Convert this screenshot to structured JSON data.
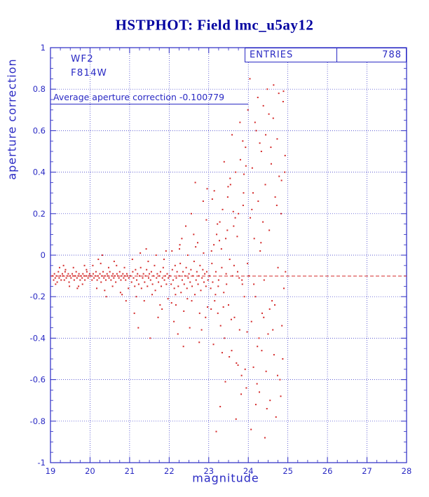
{
  "title": "HSTPHOT: Field lmc_u5ay12",
  "annotations": {
    "detector": "WF2",
    "filter": "F814W",
    "entries_label": "ENTRIES",
    "entries_value": "788",
    "average_text": "Average aperture correction -0.100779"
  },
  "colors": {
    "axis": "#2a2ac4",
    "title": "#0000a0",
    "marker": "#d42a2a",
    "background": "#ffffff"
  },
  "chart_data": {
    "type": "scatter",
    "title": "HSTPHOT: Field lmc_u5ay12",
    "xlabel": "magnitude",
    "ylabel": "aperture correction",
    "xlim": [
      19,
      28
    ],
    "ylim": [
      -1,
      1
    ],
    "x_ticks": [
      19,
      20,
      21,
      22,
      23,
      24,
      25,
      26,
      27,
      28
    ],
    "x_tick_labels": [
      "19",
      "20",
      "21",
      "22",
      "23",
      "24",
      "25",
      "26",
      "27",
      "28"
    ],
    "y_ticks": [
      1,
      0.8,
      0.6,
      0.4,
      0.2,
      0,
      -0.2,
      -0.4,
      -0.6,
      -0.8,
      -1
    ],
    "y_tick_labels": [
      "1",
      "0.8",
      "0.6",
      "0.4",
      "0.2",
      "0",
      "-0.2",
      "-0.4",
      "-0.6",
      "-0.8",
      "-1"
    ],
    "grid": true,
    "legend": "none",
    "entries": 788,
    "average_aperture_correction": -0.100779,
    "reference_line_y": -0.100779,
    "points": [
      [
        19.05,
        -0.1
      ],
      [
        19.08,
        -0.12
      ],
      [
        19.1,
        -0.09
      ],
      [
        19.12,
        -0.11
      ],
      [
        19.15,
        -0.1
      ],
      [
        19.17,
        -0.13
      ],
      [
        19.2,
        -0.08
      ],
      [
        19.22,
        -0.11
      ],
      [
        19.25,
        -0.1
      ],
      [
        19.27,
        -0.12
      ],
      [
        19.3,
        -0.09
      ],
      [
        19.32,
        -0.1
      ],
      [
        19.35,
        -0.12
      ],
      [
        19.37,
        -0.08
      ],
      [
        19.4,
        -0.11
      ],
      [
        19.42,
        -0.1
      ],
      [
        19.45,
        -0.09
      ],
      [
        19.47,
        -0.13
      ],
      [
        19.5,
        -0.1
      ],
      [
        19.52,
        -0.11
      ],
      [
        19.55,
        -0.09
      ],
      [
        19.57,
        -0.1
      ],
      [
        19.6,
        -0.12
      ],
      [
        19.62,
        -0.1
      ],
      [
        19.65,
        -0.08
      ],
      [
        19.67,
        -0.11
      ],
      [
        19.7,
        -0.1
      ],
      [
        19.72,
        -0.09
      ],
      [
        19.75,
        -0.12
      ],
      [
        19.77,
        -0.1
      ],
      [
        19.8,
        -0.11
      ],
      [
        19.82,
        -0.09
      ],
      [
        19.85,
        -0.1
      ],
      [
        19.87,
        -0.12
      ],
      [
        19.9,
        -0.1
      ],
      [
        19.92,
        -0.08
      ],
      [
        19.95,
        -0.11
      ],
      [
        19.97,
        -0.1
      ],
      [
        19.99,
        -0.09
      ],
      [
        19.23,
        -0.06
      ],
      [
        19.48,
        -0.15
      ],
      [
        19.68,
        -0.16
      ],
      [
        19.33,
        -0.05
      ],
      [
        19.81,
        -0.14
      ],
      [
        19.91,
        -0.07
      ],
      [
        19.58,
        -0.06
      ],
      [
        19.13,
        -0.14
      ],
      [
        19.71,
        -0.15
      ],
      [
        19.38,
        -0.07
      ],
      [
        19.86,
        -0.05
      ],
      [
        20.02,
        -0.1
      ],
      [
        20.05,
        -0.12
      ],
      [
        20.08,
        -0.09
      ],
      [
        20.1,
        -0.11
      ],
      [
        20.13,
        -0.1
      ],
      [
        20.15,
        -0.08
      ],
      [
        20.18,
        -0.12
      ],
      [
        20.2,
        -0.1
      ],
      [
        20.23,
        -0.11
      ],
      [
        20.25,
        -0.09
      ],
      [
        20.28,
        -0.13
      ],
      [
        20.3,
        -0.1
      ],
      [
        20.33,
        -0.08
      ],
      [
        20.35,
        -0.11
      ],
      [
        20.38,
        -0.1
      ],
      [
        20.4,
        -0.12
      ],
      [
        20.43,
        -0.09
      ],
      [
        20.45,
        -0.1
      ],
      [
        20.48,
        -0.11
      ],
      [
        20.5,
        -0.08
      ],
      [
        20.53,
        -0.12
      ],
      [
        20.55,
        -0.1
      ],
      [
        20.58,
        -0.09
      ],
      [
        20.6,
        -0.11
      ],
      [
        20.63,
        -0.1
      ],
      [
        20.65,
        -0.13
      ],
      [
        20.68,
        -0.09
      ],
      [
        20.7,
        -0.1
      ],
      [
        20.73,
        -0.11
      ],
      [
        20.75,
        -0.08
      ],
      [
        20.78,
        -0.12
      ],
      [
        20.8,
        -0.1
      ],
      [
        20.83,
        -0.09
      ],
      [
        20.85,
        -0.11
      ],
      [
        20.88,
        -0.1
      ],
      [
        20.9,
        -0.12
      ],
      [
        20.93,
        -0.09
      ],
      [
        20.95,
        -0.1
      ],
      [
        20.98,
        -0.11
      ],
      [
        20.07,
        -0.05
      ],
      [
        20.17,
        -0.16
      ],
      [
        20.27,
        -0.04
      ],
      [
        20.37,
        -0.17
      ],
      [
        20.47,
        -0.06
      ],
      [
        20.57,
        -0.15
      ],
      [
        20.67,
        -0.05
      ],
      [
        20.77,
        -0.18
      ],
      [
        20.87,
        -0.06
      ],
      [
        20.97,
        -0.16
      ],
      [
        20.21,
        -0.02
      ],
      [
        20.41,
        -0.2
      ],
      [
        20.61,
        -0.03
      ],
      [
        20.81,
        -0.19
      ],
      [
        20.31,
        0.0
      ],
      [
        20.91,
        -0.22
      ],
      [
        21.02,
        -0.1
      ],
      [
        21.05,
        -0.13
      ],
      [
        21.08,
        -0.08
      ],
      [
        21.1,
        -0.11
      ],
      [
        21.13,
        -0.15
      ],
      [
        21.15,
        -0.07
      ],
      [
        21.18,
        -0.12
      ],
      [
        21.2,
        -0.09
      ],
      [
        21.23,
        -0.14
      ],
      [
        21.25,
        -0.1
      ],
      [
        21.28,
        -0.06
      ],
      [
        21.3,
        -0.16
      ],
      [
        21.33,
        -0.11
      ],
      [
        21.35,
        -0.09
      ],
      [
        21.38,
        -0.13
      ],
      [
        21.4,
        -0.1
      ],
      [
        21.43,
        -0.07
      ],
      [
        21.45,
        -0.15
      ],
      [
        21.48,
        -0.11
      ],
      [
        21.5,
        -0.09
      ],
      [
        21.53,
        -0.12
      ],
      [
        21.55,
        -0.08
      ],
      [
        21.58,
        -0.14
      ],
      [
        21.6,
        -0.1
      ],
      [
        21.63,
        -0.05
      ],
      [
        21.65,
        -0.17
      ],
      [
        21.68,
        -0.11
      ],
      [
        21.7,
        -0.09
      ],
      [
        21.73,
        -0.13
      ],
      [
        21.75,
        -0.1
      ],
      [
        21.78,
        -0.08
      ],
      [
        21.8,
        -0.15
      ],
      [
        21.83,
        -0.11
      ],
      [
        21.85,
        -0.06
      ],
      [
        21.88,
        -0.12
      ],
      [
        21.9,
        -0.1
      ],
      [
        21.93,
        -0.14
      ],
      [
        21.95,
        -0.09
      ],
      [
        21.98,
        -0.11
      ],
      [
        21.07,
        -0.02
      ],
      [
        21.17,
        -0.2
      ],
      [
        21.27,
        0.01
      ],
      [
        21.37,
        -0.22
      ],
      [
        21.47,
        -0.03
      ],
      [
        21.57,
        -0.19
      ],
      [
        21.67,
        0.0
      ],
      [
        21.77,
        -0.24
      ],
      [
        21.87,
        -0.02
      ],
      [
        21.97,
        -0.21
      ],
      [
        21.12,
        -0.28
      ],
      [
        21.42,
        0.03
      ],
      [
        21.72,
        -0.3
      ],
      [
        21.92,
        0.02
      ],
      [
        21.22,
        -0.35
      ],
      [
        21.82,
        -0.26
      ],
      [
        21.52,
        -0.4
      ],
      [
        22.02,
        -0.1
      ],
      [
        22.05,
        -0.14
      ],
      [
        22.08,
        -0.07
      ],
      [
        22.1,
        -0.12
      ],
      [
        22.13,
        -0.16
      ],
      [
        22.15,
        -0.05
      ],
      [
        22.18,
        -0.11
      ],
      [
        22.2,
        -0.08
      ],
      [
        22.23,
        -0.15
      ],
      [
        22.25,
        -0.1
      ],
      [
        22.28,
        -0.04
      ],
      [
        22.3,
        -0.18
      ],
      [
        22.33,
        -0.12
      ],
      [
        22.35,
        -0.08
      ],
      [
        22.38,
        -0.14
      ],
      [
        22.4,
        -0.1
      ],
      [
        22.43,
        -0.06
      ],
      [
        22.45,
        -0.16
      ],
      [
        22.48,
        -0.11
      ],
      [
        22.5,
        -0.09
      ],
      [
        22.53,
        -0.13
      ],
      [
        22.55,
        -0.07
      ],
      [
        22.58,
        -0.15
      ],
      [
        22.6,
        -0.1
      ],
      [
        22.63,
        -0.03
      ],
      [
        22.65,
        -0.19
      ],
      [
        22.68,
        -0.12
      ],
      [
        22.7,
        -0.08
      ],
      [
        22.73,
        -0.14
      ],
      [
        22.75,
        -0.1
      ],
      [
        22.78,
        -0.05
      ],
      [
        22.8,
        -0.17
      ],
      [
        22.83,
        -0.11
      ],
      [
        22.85,
        -0.07
      ],
      [
        22.88,
        -0.13
      ],
      [
        22.9,
        -0.09
      ],
      [
        22.93,
        -0.15
      ],
      [
        22.95,
        -0.08
      ],
      [
        22.98,
        -0.12
      ],
      [
        22.07,
        0.02
      ],
      [
        22.17,
        -0.24
      ],
      [
        22.27,
        0.05
      ],
      [
        22.37,
        -0.27
      ],
      [
        22.47,
        0.0
      ],
      [
        22.57,
        -0.22
      ],
      [
        22.67,
        0.04
      ],
      [
        22.77,
        -0.28
      ],
      [
        22.87,
        0.01
      ],
      [
        22.97,
        -0.25
      ],
      [
        22.12,
        -0.32
      ],
      [
        22.32,
        0.08
      ],
      [
        22.52,
        -0.35
      ],
      [
        22.72,
        0.06
      ],
      [
        22.92,
        -0.3
      ],
      [
        22.22,
        -0.38
      ],
      [
        22.62,
        0.1
      ],
      [
        22.82,
        -0.36
      ],
      [
        22.42,
        0.14
      ],
      [
        22.56,
        0.2
      ],
      [
        22.86,
        0.26
      ],
      [
        22.66,
        0.35
      ],
      [
        22.46,
        -0.21
      ],
      [
        22.76,
        -0.42
      ],
      [
        22.96,
        0.32
      ],
      [
        22.36,
        -0.44
      ],
      [
        22.16,
        -0.19
      ],
      [
        22.06,
        -0.23
      ],
      [
        22.26,
        0.03
      ],
      [
        22.94,
        0.17
      ],
      [
        23.02,
        -0.1
      ],
      [
        23.05,
        -0.16
      ],
      [
        23.08,
        -0.04
      ],
      [
        23.1,
        -0.13
      ],
      [
        23.13,
        0.05
      ],
      [
        23.15,
        -0.22
      ],
      [
        23.18,
        -0.08
      ],
      [
        23.2,
        0.1
      ],
      [
        23.23,
        -0.28
      ],
      [
        23.25,
        -0.12
      ],
      [
        23.28,
        0.16
      ],
      [
        23.3,
        -0.34
      ],
      [
        23.33,
        -0.06
      ],
      [
        23.35,
        0.22
      ],
      [
        23.38,
        -0.18
      ],
      [
        23.4,
        -0.4
      ],
      [
        23.43,
        0.08
      ],
      [
        23.45,
        -0.14
      ],
      [
        23.48,
        0.28
      ],
      [
        23.5,
        -0.24
      ],
      [
        23.53,
        -0.02
      ],
      [
        23.55,
        0.34
      ],
      [
        23.58,
        -0.46
      ],
      [
        23.6,
        -0.1
      ],
      [
        23.63,
        0.14
      ],
      [
        23.65,
        -0.3
      ],
      [
        23.68,
        0.4
      ],
      [
        23.7,
        -0.52
      ],
      [
        23.73,
        -0.08
      ],
      [
        23.75,
        0.2
      ],
      [
        23.78,
        -0.36
      ],
      [
        23.8,
        0.46
      ],
      [
        23.83,
        -0.58
      ],
      [
        23.85,
        -0.14
      ],
      [
        23.88,
        0.3
      ],
      [
        23.9,
        -0.2
      ],
      [
        23.93,
        0.52
      ],
      [
        23.95,
        -0.64
      ],
      [
        23.98,
        -0.04
      ],
      [
        23.07,
        0.02
      ],
      [
        23.17,
        -0.19
      ],
      [
        23.27,
        0.07
      ],
      [
        23.37,
        -0.25
      ],
      [
        23.47,
        0.12
      ],
      [
        23.57,
        -0.31
      ],
      [
        23.67,
        0.18
      ],
      [
        23.77,
        -0.11
      ],
      [
        23.87,
        0.24
      ],
      [
        23.97,
        -0.37
      ],
      [
        23.12,
        -0.43
      ],
      [
        23.32,
        0.03
      ],
      [
        23.52,
        -0.49
      ],
      [
        23.72,
        0.09
      ],
      [
        23.92,
        -0.55
      ],
      [
        23.22,
        0.15
      ],
      [
        23.42,
        -0.61
      ],
      [
        23.62,
        0.21
      ],
      [
        23.82,
        -0.67
      ],
      [
        23.09,
        0.27
      ],
      [
        23.29,
        -0.73
      ],
      [
        23.49,
        0.33
      ],
      [
        23.69,
        -0.79
      ],
      [
        23.89,
        0.39
      ],
      [
        23.19,
        -0.85
      ],
      [
        23.39,
        0.45
      ],
      [
        23.59,
        0.58
      ],
      [
        23.79,
        0.64
      ],
      [
        23.99,
        0.7
      ],
      [
        23.24,
        -0.15
      ],
      [
        23.44,
        -0.09
      ],
      [
        23.64,
        -0.05
      ],
      [
        23.84,
        -0.12
      ],
      [
        23.14,
        0.31
      ],
      [
        23.34,
        -0.47
      ],
      [
        23.54,
        0.37
      ],
      [
        23.74,
        -0.53
      ],
      [
        23.94,
        0.43
      ],
      [
        23.06,
        -0.26
      ],
      [
        23.86,
        0.55
      ],
      [
        24.02,
        -0.1
      ],
      [
        24.05,
        0.18
      ],
      [
        24.08,
        -0.32
      ],
      [
        24.1,
        0.42
      ],
      [
        24.13,
        -0.54
      ],
      [
        24.15,
        0.08
      ],
      [
        24.18,
        -0.2
      ],
      [
        24.2,
        0.6
      ],
      [
        24.23,
        -0.44
      ],
      [
        24.25,
        0.26
      ],
      [
        24.28,
        -0.66
      ],
      [
        24.3,
        0.02
      ],
      [
        24.33,
        0.5
      ],
      [
        24.35,
        -0.28
      ],
      [
        24.38,
        0.72
      ],
      [
        24.4,
        -0.12
      ],
      [
        24.43,
        0.34
      ],
      [
        24.45,
        -0.56
      ],
      [
        24.48,
        0.8
      ],
      [
        24.5,
        -0.38
      ],
      [
        24.53,
        0.12
      ],
      [
        24.55,
        -0.7
      ],
      [
        24.58,
        0.44
      ],
      [
        24.6,
        -0.22
      ],
      [
        24.63,
        0.66
      ],
      [
        24.65,
        -0.48
      ],
      [
        24.68,
        0.28
      ],
      [
        24.7,
        -0.78
      ],
      [
        24.73,
        0.56
      ],
      [
        24.75,
        -0.06
      ],
      [
        24.78,
        0.38
      ],
      [
        24.8,
        -0.6
      ],
      [
        24.83,
        0.2
      ],
      [
        24.85,
        -0.34
      ],
      [
        24.88,
        0.74
      ],
      [
        24.9,
        -0.16
      ],
      [
        24.93,
        0.48
      ],
      [
        24.07,
        -0.84
      ],
      [
        24.17,
        0.64
      ],
      [
        24.27,
        -0.4
      ],
      [
        24.37,
        0.16
      ],
      [
        24.47,
        -0.74
      ],
      [
        24.57,
        0.52
      ],
      [
        24.67,
        -0.24
      ],
      [
        24.77,
        0.78
      ],
      [
        24.87,
        -0.5
      ],
      [
        24.12,
        0.3
      ],
      [
        24.22,
        -0.62
      ],
      [
        24.32,
        0.06
      ],
      [
        24.42,
        -0.88
      ],
      [
        24.52,
        0.68
      ],
      [
        24.62,
        -0.36
      ],
      [
        24.72,
        0.24
      ],
      [
        24.82,
        -0.68
      ],
      [
        24.92,
        0.4
      ],
      [
        24.04,
        0.85
      ],
      [
        24.14,
        -0.14
      ],
      [
        24.24,
        0.76
      ],
      [
        24.34,
        -0.46
      ],
      [
        24.44,
        0.58
      ],
      [
        24.54,
        -0.26
      ],
      [
        24.64,
        0.82
      ],
      [
        24.74,
        -0.58
      ],
      [
        24.84,
        0.36
      ],
      [
        24.94,
        -0.08
      ],
      [
        24.09,
        0.22
      ],
      [
        24.19,
        -0.72
      ],
      [
        24.29,
        0.54
      ],
      [
        24.39,
        -0.3
      ],
      [
        24.89,
        0.79
      ]
    ]
  }
}
